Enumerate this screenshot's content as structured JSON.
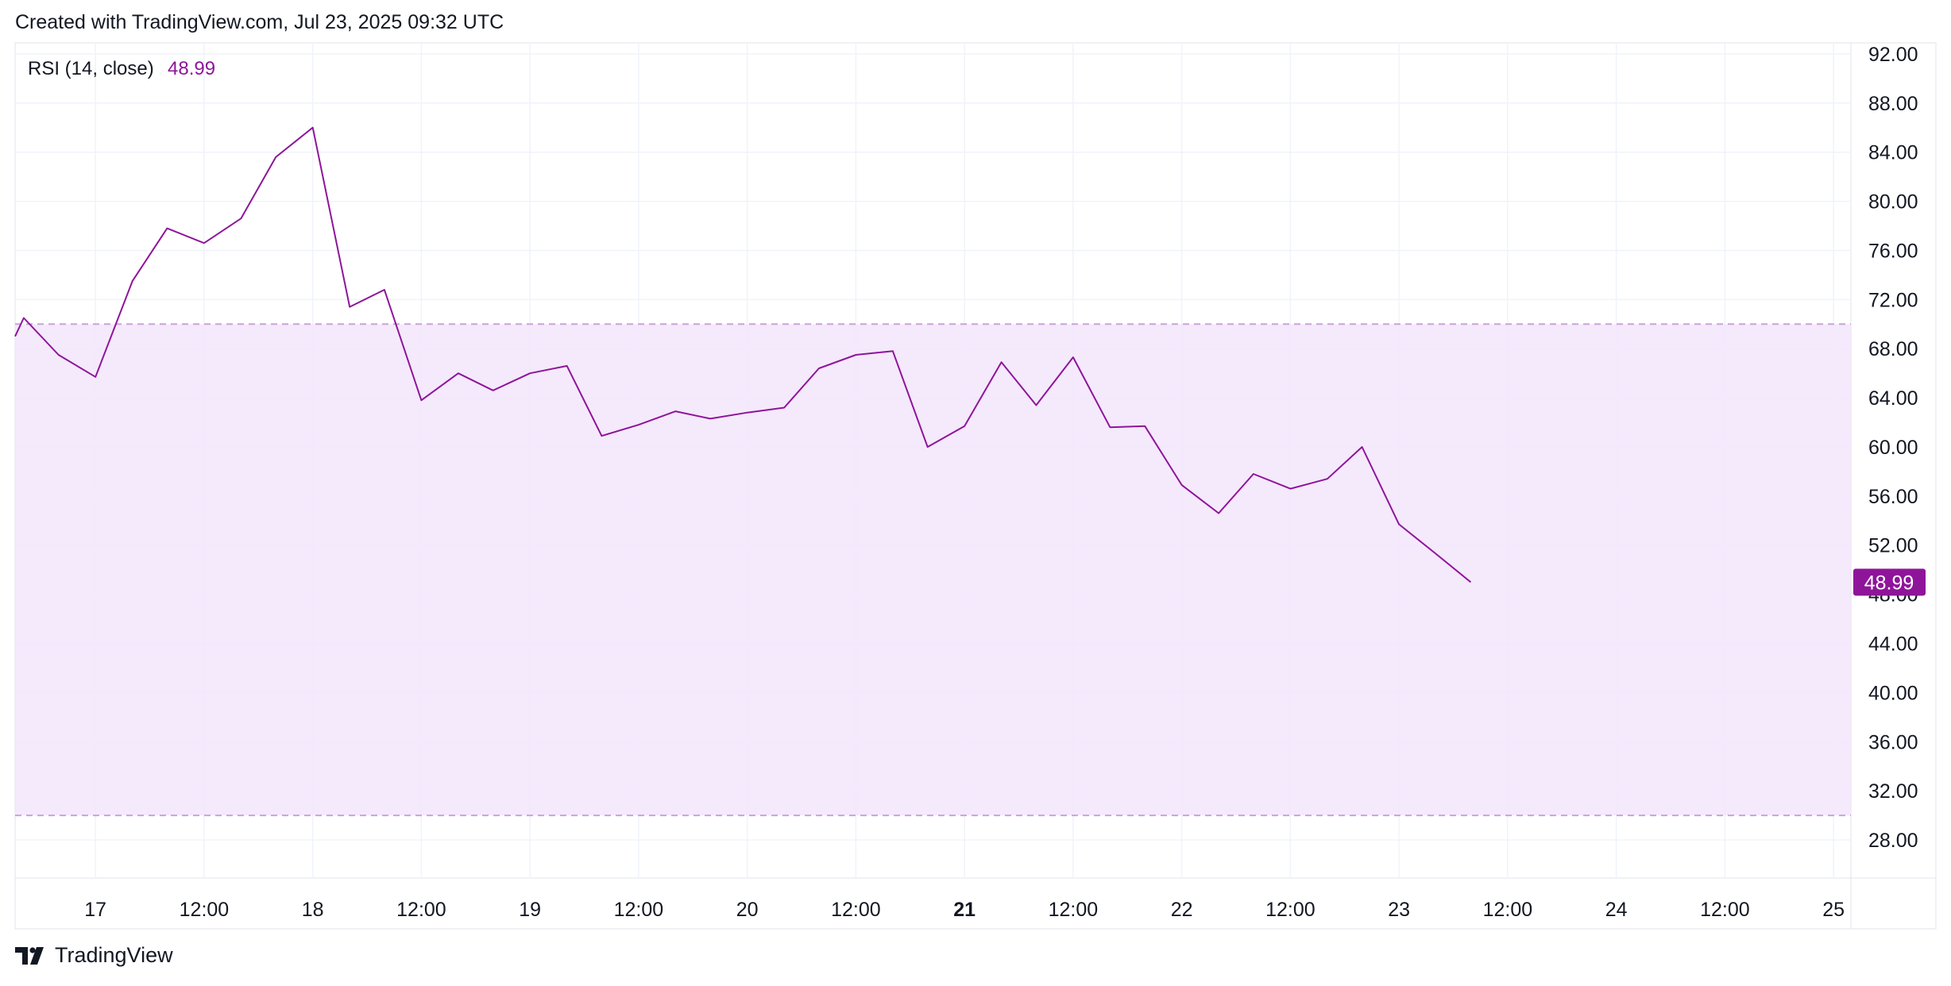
{
  "header": {
    "created_text": "Created with TradingView.com, Jul 23, 2025 09:32 UTC"
  },
  "footer": {
    "brand": "TradingView",
    "logo_icon": "tradingview-logo-icon"
  },
  "colors": {
    "line": "#8E1599",
    "band_fill": "#F3E5FC",
    "band_border": "#C9A4D8",
    "grid": "#F0F3FA",
    "axis_text": "#131722",
    "last_value_badge": "#8E1599"
  },
  "chart_data": {
    "type": "line",
    "legend": {
      "label": "RSI (14, close)",
      "value": "48.99"
    },
    "last_value_label": "48.99",
    "x_tick_labels": [
      "17",
      "12:00",
      "18",
      "12:00",
      "19",
      "12:00",
      "20",
      "12:00",
      "21",
      "12:00",
      "22",
      "12:00",
      "23",
      "12:00",
      "24",
      "12:00",
      "25"
    ],
    "x_tick_days": [
      17,
      17.5,
      18,
      18.5,
      19,
      19.5,
      20,
      20.5,
      21,
      21.5,
      22,
      22.5,
      23,
      23.5,
      24,
      24.5,
      25
    ],
    "bold_tick": "21",
    "y_tick_labels": [
      "92.00",
      "88.00",
      "84.00",
      "80.00",
      "76.00",
      "72.00",
      "68.00",
      "64.00",
      "60.00",
      "56.00",
      "52.00",
      "48.00",
      "44.00",
      "40.00",
      "36.00",
      "32.00",
      "28.00"
    ],
    "ylim": [
      24.9,
      92.9
    ],
    "xlim": [
      16.63,
      25.08
    ],
    "band": {
      "upper": 70,
      "lower": 30
    },
    "series": [
      {
        "x": [
          16.63,
          16.67,
          16.83,
          17.0,
          17.17,
          17.33,
          17.5,
          17.67,
          17.83,
          18.0,
          18.17,
          18.33,
          18.5,
          18.67,
          18.83,
          19.0,
          19.17,
          19.33,
          19.5,
          19.67,
          19.83,
          20.0,
          20.17,
          20.33,
          20.5,
          20.67,
          20.83,
          21.0,
          21.17,
          21.33,
          21.5,
          21.67,
          21.83,
          22.0,
          22.17,
          22.33,
          22.5,
          22.67,
          22.83,
          23.0,
          23.17,
          23.33
        ],
        "y": [
          69.0,
          70.5,
          67.5,
          65.7,
          73.5,
          77.8,
          76.6,
          78.6,
          83.6,
          86.0,
          71.4,
          72.8,
          63.8,
          66.0,
          64.6,
          66.0,
          66.6,
          60.9,
          61.8,
          62.9,
          62.3,
          62.8,
          63.2,
          66.4,
          67.5,
          67.8,
          60.0,
          61.7,
          66.9,
          63.4,
          67.3,
          61.6,
          61.7,
          56.9,
          54.6,
          57.8,
          56.6,
          57.4,
          60.0,
          53.7,
          51.3,
          48.99
        ]
      }
    ]
  }
}
